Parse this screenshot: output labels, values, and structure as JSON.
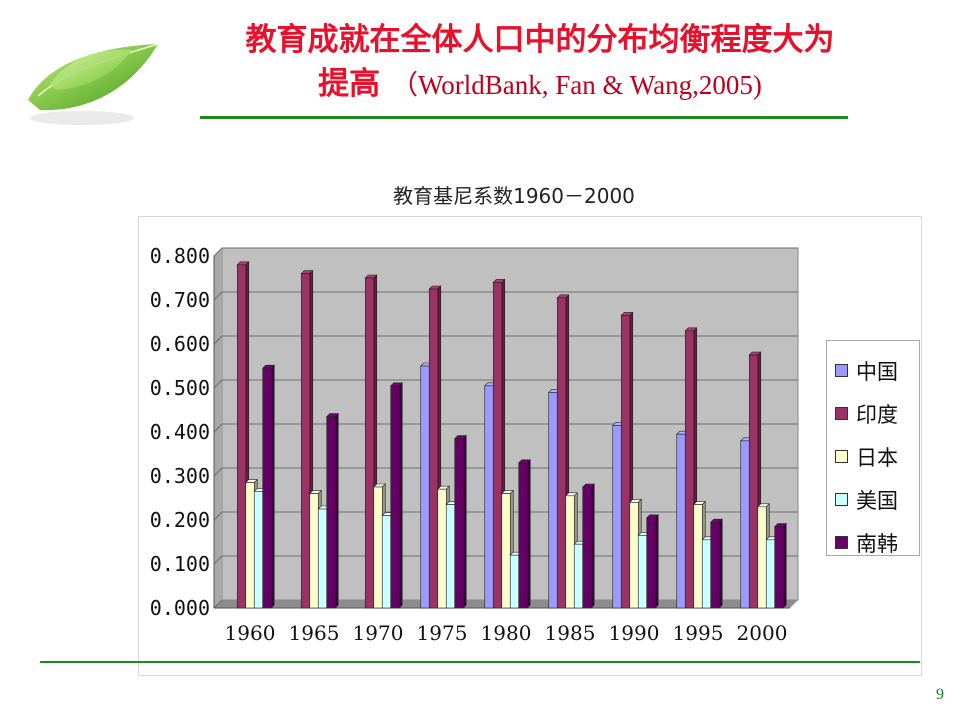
{
  "header": {
    "title_line1": "教育成就在全体人口中的分布均衡程度大为",
    "title_line2_main": "提高",
    "title_line2_cite": "（WorldBank, Fan & Wang,2005)"
  },
  "footer": {
    "page_number": "9"
  },
  "colors": {
    "title": "#e8102a",
    "rule": "#1e8a1e",
    "plot_bg": "#c0c0c0"
  },
  "chart_data": {
    "type": "bar",
    "title": "教育基尼系数1960－2000",
    "categories": [
      "1960",
      "1965",
      "1970",
      "1975",
      "1980",
      "1985",
      "1990",
      "1995",
      "2000"
    ],
    "ylim": [
      0,
      0.8
    ],
    "yticks": [
      "0.000",
      "0.100",
      "0.200",
      "0.300",
      "0.400",
      "0.500",
      "0.600",
      "0.700",
      "0.800"
    ],
    "grid": true,
    "legend_position": "right",
    "series": [
      {
        "name": "中国",
        "color": "#9999ff",
        "values": [
          null,
          null,
          null,
          0.55,
          0.505,
          0.49,
          0.415,
          0.395,
          0.38
        ]
      },
      {
        "name": "印度",
        "color": "#993366",
        "values": [
          0.78,
          0.76,
          0.75,
          0.725,
          0.74,
          0.705,
          0.665,
          0.63,
          0.575
        ]
      },
      {
        "name": "日本",
        "color": "#ffffcc",
        "values": [
          0.285,
          0.26,
          0.275,
          0.27,
          0.26,
          0.255,
          0.24,
          0.235,
          0.23
        ]
      },
      {
        "name": "美国",
        "color": "#ccffff",
        "values": [
          0.265,
          0.225,
          0.21,
          0.235,
          0.12,
          0.145,
          0.165,
          0.155,
          0.155
        ]
      },
      {
        "name": "南韩",
        "color": "#660066",
        "values": [
          0.545,
          0.435,
          0.505,
          0.385,
          0.33,
          0.275,
          0.205,
          0.195,
          0.185
        ]
      }
    ]
  }
}
